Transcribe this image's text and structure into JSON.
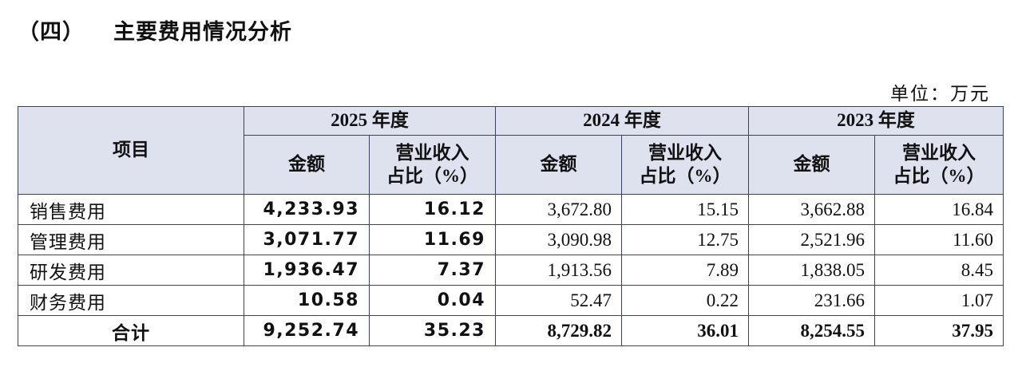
{
  "header": {
    "section": "（四）",
    "title": "主要费用情况分析",
    "unit": "单位：万元"
  },
  "table": {
    "item_header": "项目",
    "groups": [
      {
        "label": "2025 年度",
        "amount": "金额",
        "ratio": [
          "营业收入",
          "占比（%）"
        ]
      },
      {
        "label": "2024 年度",
        "amount": "金额",
        "ratio": [
          "营业收入",
          "占比（%）"
        ]
      },
      {
        "label": "2023 年度",
        "amount": "金额",
        "ratio": [
          "营业收入",
          "占比（%）"
        ]
      }
    ],
    "rows": [
      [
        "销售费用",
        "4,233.93",
        "16.12",
        "3,672.80",
        "15.15",
        "3,662.88",
        "16.84"
      ],
      [
        "管理费用",
        "3,071.77",
        "11.69",
        "3,090.98",
        "12.75",
        "2,521.96",
        "11.60"
      ],
      [
        "研发费用",
        "1,936.47",
        "7.37",
        "1,913.56",
        "7.89",
        "1,838.05",
        "8.45"
      ],
      [
        "财务费用",
        "10.58",
        "0.04",
        "52.47",
        "0.22",
        "231.66",
        "1.07"
      ],
      [
        "合计",
        "9,252.74",
        "35.23",
        "8,729.82",
        "36.01",
        "8,254.55",
        "37.95"
      ]
    ]
  }
}
